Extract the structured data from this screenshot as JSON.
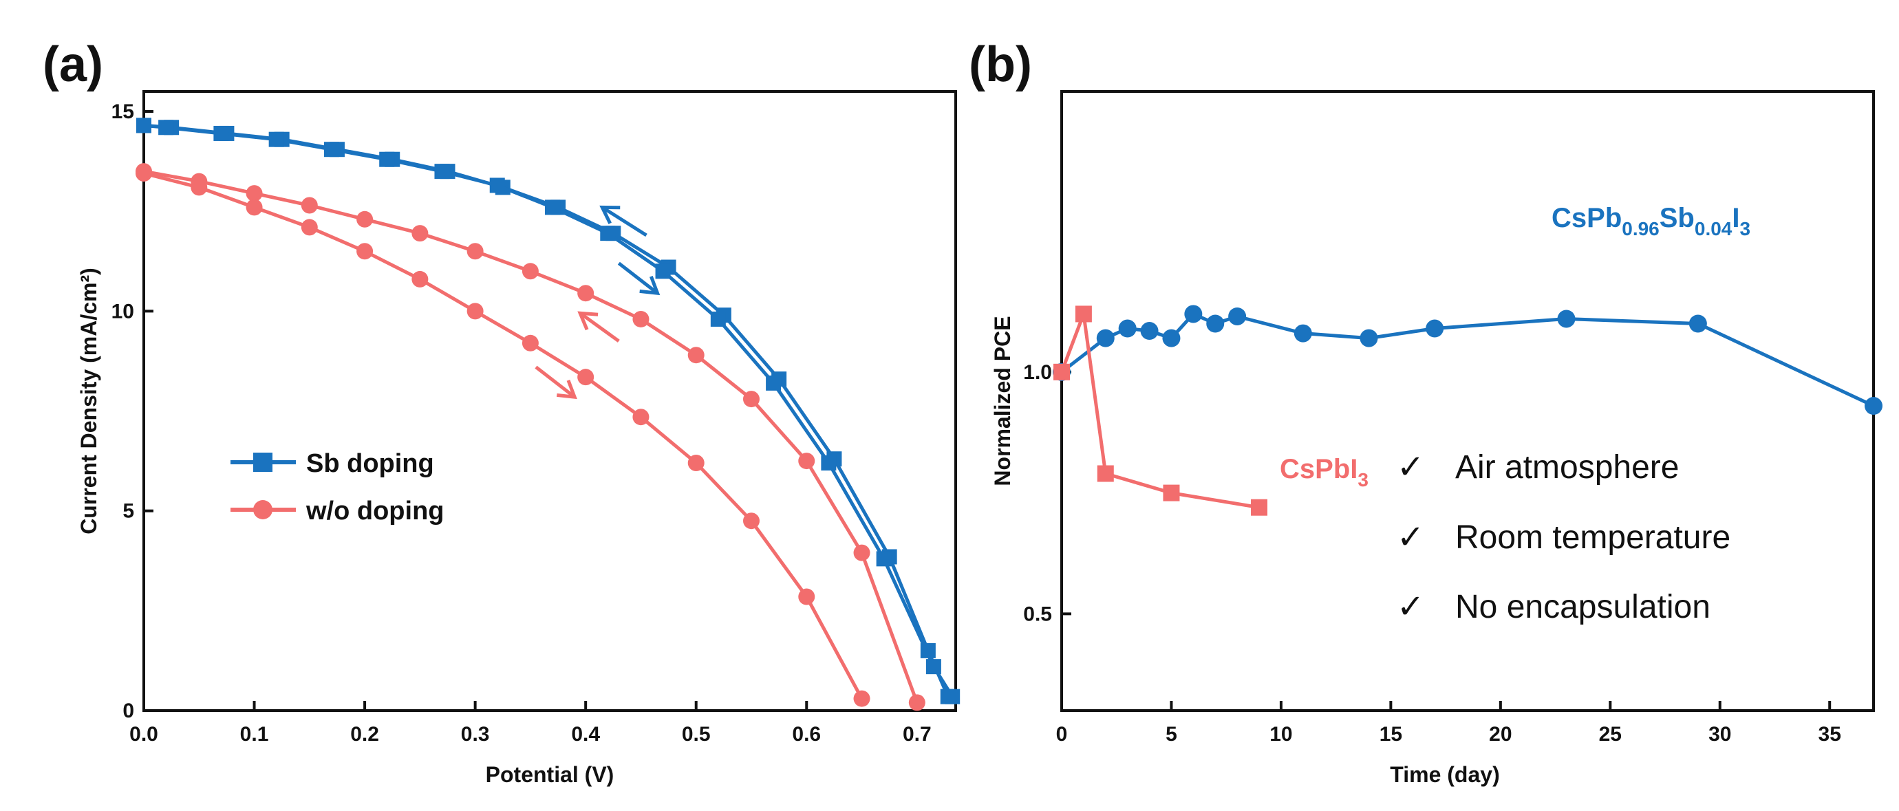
{
  "colors": {
    "blue": "#1a73bf",
    "red": "#f26d6d",
    "axis": "#111111"
  },
  "chart_data": [
    {
      "panel": "(a)",
      "type": "line",
      "xlabel": "Potential (V)",
      "ylabel": "Current Density (mA/cm²)",
      "xlim": [
        0.0,
        0.735
      ],
      "ylim": [
        0,
        15.5
      ],
      "xticks": [
        "0.0",
        "0.1",
        "0.2",
        "0.3",
        "0.4",
        "0.5",
        "0.6",
        "0.7"
      ],
      "xtick_values": [
        0.0,
        0.1,
        0.2,
        0.3,
        0.4,
        0.5,
        0.6,
        0.7
      ],
      "yticks": [
        "0",
        "5",
        "10",
        "15"
      ],
      "ytick_values": [
        0,
        5,
        10,
        15
      ],
      "legend": [
        {
          "label": "Sb doping",
          "color": "#1a73bf",
          "marker": "square"
        },
        {
          "label": "w/o doping",
          "color": "#f26d6d",
          "marker": "circle"
        }
      ],
      "series": [
        {
          "name": "Sb doping reverse",
          "color": "#1a73bf",
          "marker": "square",
          "x": [
            0.0,
            0.025,
            0.075,
            0.125,
            0.175,
            0.225,
            0.275,
            0.325,
            0.375,
            0.425,
            0.475,
            0.525,
            0.575,
            0.625,
            0.675,
            0.71,
            0.728
          ],
          "y": [
            14.65,
            14.6,
            14.45,
            14.3,
            14.05,
            13.8,
            13.5,
            13.1,
            12.6,
            11.95,
            11.1,
            9.9,
            8.3,
            6.3,
            3.85,
            1.5,
            0.35
          ]
        },
        {
          "name": "Sb doping forward",
          "color": "#1a73bf",
          "marker": "square",
          "x": [
            0.0,
            0.02,
            0.07,
            0.12,
            0.17,
            0.22,
            0.27,
            0.32,
            0.37,
            0.42,
            0.47,
            0.52,
            0.57,
            0.62,
            0.67,
            0.715,
            0.732
          ],
          "y": [
            14.65,
            14.6,
            14.45,
            14.3,
            14.05,
            13.8,
            13.5,
            13.15,
            12.6,
            11.95,
            11.0,
            9.8,
            8.2,
            6.2,
            3.8,
            1.1,
            0.35
          ]
        },
        {
          "name": "w/o doping reverse",
          "color": "#f26d6d",
          "marker": "circle",
          "x": [
            0.0,
            0.05,
            0.1,
            0.15,
            0.2,
            0.25,
            0.3,
            0.35,
            0.4,
            0.45,
            0.5,
            0.55,
            0.6,
            0.65,
            0.7
          ],
          "y": [
            13.5,
            13.25,
            12.95,
            12.65,
            12.3,
            11.95,
            11.5,
            11.0,
            10.45,
            9.8,
            8.9,
            7.8,
            6.25,
            3.95,
            0.2
          ]
        },
        {
          "name": "w/o doping forward",
          "color": "#f26d6d",
          "marker": "circle",
          "x": [
            0.0,
            0.05,
            0.1,
            0.15,
            0.2,
            0.25,
            0.3,
            0.35,
            0.4,
            0.45,
            0.5,
            0.55,
            0.6,
            0.65
          ],
          "y": [
            13.45,
            13.1,
            12.6,
            12.1,
            11.5,
            10.8,
            10.0,
            9.2,
            8.35,
            7.35,
            6.2,
            4.75,
            2.85,
            0.3
          ]
        }
      ],
      "arrows": [
        {
          "color": "#1a73bf",
          "direction": "reverse",
          "from": [
            0.455,
            11.9
          ],
          "to": [
            0.415,
            12.6
          ]
        },
        {
          "color": "#1a73bf",
          "direction": "forward",
          "from": [
            0.43,
            11.2
          ],
          "to": [
            0.465,
            10.45
          ]
        },
        {
          "color": "#f26d6d",
          "direction": "reverse",
          "from": [
            0.43,
            9.25
          ],
          "to": [
            0.395,
            9.95
          ]
        },
        {
          "color": "#f26d6d",
          "direction": "forward",
          "from": [
            0.355,
            8.6
          ],
          "to": [
            0.39,
            7.85
          ]
        }
      ]
    },
    {
      "panel": "(b)",
      "type": "line",
      "xlabel": "Time (day)",
      "ylabel": "Normalized PCE",
      "xlim": [
        0,
        37
      ],
      "ylim": [
        0.3,
        1.58
      ],
      "xticks": [
        "0",
        "5",
        "10",
        "15",
        "20",
        "25",
        "30",
        "35"
      ],
      "xtick_values": [
        0,
        5,
        10,
        15,
        20,
        25,
        30,
        35
      ],
      "yticks": [
        "0.5",
        "1.0"
      ],
      "ytick_values": [
        0.5,
        1.0
      ],
      "series": [
        {
          "name": "CsPb0.96Sb0.04I3",
          "color": "#1a73bf",
          "marker": "circle",
          "x": [
            0,
            2,
            3,
            4,
            5,
            6,
            7,
            8,
            11,
            14,
            17,
            23,
            29,
            37
          ],
          "y": [
            1.0,
            1.07,
            1.09,
            1.085,
            1.07,
            1.12,
            1.1,
            1.115,
            1.08,
            1.07,
            1.09,
            1.11,
            1.1,
            0.93
          ]
        },
        {
          "name": "CsPbI3",
          "color": "#f26d6d",
          "marker": "square",
          "x": [
            0,
            1,
            2,
            5,
            9
          ],
          "y": [
            1.0,
            1.12,
            0.79,
            0.75,
            0.72
          ]
        }
      ],
      "series_labels": {
        "blue": {
          "main": "CsPb",
          "sub1": "0.96",
          "mid": "Sb",
          "sub2": "0.04",
          "end": "I",
          "sub3": "3"
        },
        "red": {
          "main": "CsPbI",
          "sub": "3"
        }
      },
      "conditions": [
        {
          "check": "✓",
          "text": "Air atmosphere"
        },
        {
          "check": "✓",
          "text": "Room temperature"
        },
        {
          "check": "✓",
          "text": "No encapsulation"
        }
      ]
    }
  ]
}
